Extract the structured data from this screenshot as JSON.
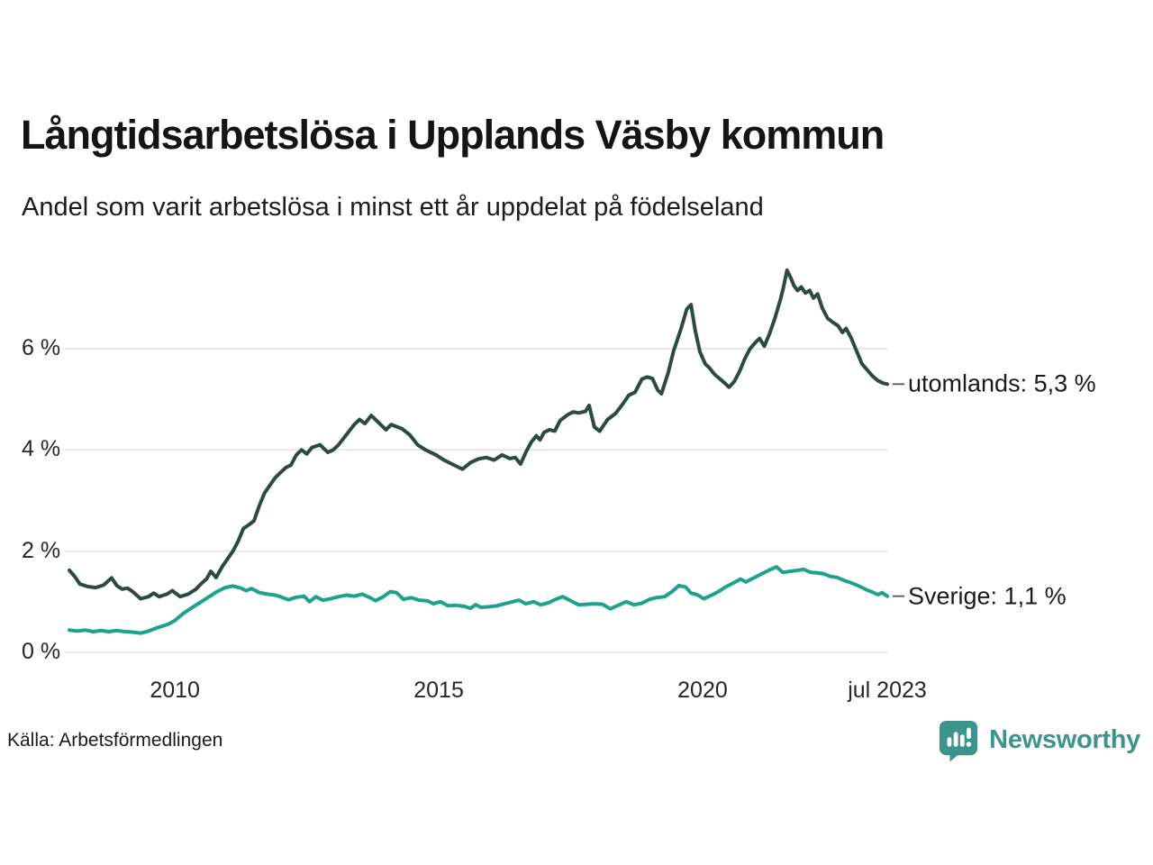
{
  "header": {
    "title": "Långtidsarbetslösa i Upplands Väsby kommun",
    "subtitle": "Andel som varit arbetslösa i minst ett år uppdelat på födelseland"
  },
  "footer": {
    "source": "Källa: Arbetsförmedlingen",
    "brand": "Newsworthy"
  },
  "colors": {
    "background": "#ffffff",
    "title_text": "#141414",
    "axis_text": "#262626",
    "gridline": "#e2e2e2",
    "connector": "#555555",
    "brand_teal": "#3e948c",
    "series_utomlands": "#2a4a42",
    "series_sverige": "#1ca28e"
  },
  "chart_data": {
    "type": "line",
    "title": "Långtidsarbetslösa i Upplands Väsby kommun",
    "subtitle": "Andel som varit arbetslösa i minst ett år uppdelat på födelseland",
    "source": "Källa: Arbetsförmedlingen",
    "grid": "horizontal-only",
    "legend_position": "labels-at-line-end-right",
    "x_axis": {
      "unit": "year (monthly observations)",
      "range": [
        2008.0,
        2023.5
      ],
      "ticks": [
        {
          "label": "2010",
          "year": 2010
        },
        {
          "label": "2015",
          "year": 2015
        },
        {
          "label": "2020",
          "year": 2020
        },
        {
          "label": "jul 2023",
          "year": 2023.5
        }
      ]
    },
    "y_axis": {
      "unit": "percent",
      "range": [
        0,
        7.8
      ],
      "gridlines": true,
      "ticks": [
        {
          "label": "0 %",
          "value": 0
        },
        {
          "label": "2 %",
          "value": 2
        },
        {
          "label": "4 %",
          "value": 4
        },
        {
          "label": "6 %",
          "value": 6
        }
      ]
    },
    "series": [
      {
        "name": "utomlands",
        "label": "utomlands: 5,3 %",
        "last_value": 5.3,
        "color": "#2a4a42",
        "points": [
          [
            2008.0,
            1.62
          ],
          [
            2008.1,
            1.5
          ],
          [
            2008.2,
            1.35
          ],
          [
            2008.35,
            1.3
          ],
          [
            2008.5,
            1.28
          ],
          [
            2008.65,
            1.33
          ],
          [
            2008.8,
            1.47
          ],
          [
            2008.9,
            1.32
          ],
          [
            2009.0,
            1.25
          ],
          [
            2009.1,
            1.27
          ],
          [
            2009.2,
            1.2
          ],
          [
            2009.35,
            1.06
          ],
          [
            2009.5,
            1.1
          ],
          [
            2009.6,
            1.17
          ],
          [
            2009.7,
            1.1
          ],
          [
            2009.85,
            1.15
          ],
          [
            2009.95,
            1.22
          ],
          [
            2010.1,
            1.1
          ],
          [
            2010.25,
            1.15
          ],
          [
            2010.4,
            1.25
          ],
          [
            2010.5,
            1.36
          ],
          [
            2010.6,
            1.45
          ],
          [
            2010.68,
            1.6
          ],
          [
            2010.78,
            1.48
          ],
          [
            2010.9,
            1.7
          ],
          [
            2011.0,
            1.85
          ],
          [
            2011.1,
            2.0
          ],
          [
            2011.2,
            2.2
          ],
          [
            2011.3,
            2.45
          ],
          [
            2011.4,
            2.52
          ],
          [
            2011.5,
            2.6
          ],
          [
            2011.6,
            2.9
          ],
          [
            2011.7,
            3.15
          ],
          [
            2011.8,
            3.3
          ],
          [
            2011.9,
            3.45
          ],
          [
            2012.0,
            3.55
          ],
          [
            2012.1,
            3.65
          ],
          [
            2012.2,
            3.7
          ],
          [
            2012.3,
            3.9
          ],
          [
            2012.4,
            4.0
          ],
          [
            2012.5,
            3.92
          ],
          [
            2012.6,
            4.05
          ],
          [
            2012.75,
            4.1
          ],
          [
            2012.9,
            3.95
          ],
          [
            2013.0,
            4.0
          ],
          [
            2013.1,
            4.1
          ],
          [
            2013.25,
            4.3
          ],
          [
            2013.4,
            4.5
          ],
          [
            2013.5,
            4.6
          ],
          [
            2013.6,
            4.52
          ],
          [
            2013.72,
            4.68
          ],
          [
            2013.85,
            4.55
          ],
          [
            2014.0,
            4.4
          ],
          [
            2014.1,
            4.5
          ],
          [
            2014.3,
            4.42
          ],
          [
            2014.45,
            4.3
          ],
          [
            2014.6,
            4.1
          ],
          [
            2014.75,
            4.0
          ],
          [
            2014.95,
            3.9
          ],
          [
            2015.1,
            3.8
          ],
          [
            2015.25,
            3.72
          ],
          [
            2015.45,
            3.62
          ],
          [
            2015.6,
            3.75
          ],
          [
            2015.75,
            3.82
          ],
          [
            2015.9,
            3.85
          ],
          [
            2016.05,
            3.8
          ],
          [
            2016.2,
            3.9
          ],
          [
            2016.35,
            3.83
          ],
          [
            2016.45,
            3.85
          ],
          [
            2016.55,
            3.72
          ],
          [
            2016.65,
            3.95
          ],
          [
            2016.75,
            4.15
          ],
          [
            2016.85,
            4.28
          ],
          [
            2016.92,
            4.2
          ],
          [
            2017.0,
            4.35
          ],
          [
            2017.1,
            4.4
          ],
          [
            2017.2,
            4.37
          ],
          [
            2017.3,
            4.58
          ],
          [
            2017.45,
            4.7
          ],
          [
            2017.55,
            4.75
          ],
          [
            2017.65,
            4.73
          ],
          [
            2017.78,
            4.76
          ],
          [
            2017.85,
            4.88
          ],
          [
            2017.95,
            4.45
          ],
          [
            2018.05,
            4.37
          ],
          [
            2018.2,
            4.6
          ],
          [
            2018.35,
            4.72
          ],
          [
            2018.47,
            4.88
          ],
          [
            2018.6,
            5.08
          ],
          [
            2018.72,
            5.14
          ],
          [
            2018.85,
            5.4
          ],
          [
            2018.95,
            5.44
          ],
          [
            2019.05,
            5.41
          ],
          [
            2019.15,
            5.18
          ],
          [
            2019.22,
            5.11
          ],
          [
            2019.35,
            5.53
          ],
          [
            2019.45,
            5.95
          ],
          [
            2019.58,
            6.36
          ],
          [
            2019.7,
            6.78
          ],
          [
            2019.78,
            6.87
          ],
          [
            2019.86,
            6.36
          ],
          [
            2019.95,
            5.94
          ],
          [
            2020.05,
            5.7
          ],
          [
            2020.13,
            5.62
          ],
          [
            2020.22,
            5.5
          ],
          [
            2020.32,
            5.41
          ],
          [
            2020.42,
            5.32
          ],
          [
            2020.5,
            5.24
          ],
          [
            2020.6,
            5.35
          ],
          [
            2020.7,
            5.55
          ],
          [
            2020.8,
            5.8
          ],
          [
            2020.9,
            6.0
          ],
          [
            2021.0,
            6.12
          ],
          [
            2021.08,
            6.2
          ],
          [
            2021.17,
            6.05
          ],
          [
            2021.27,
            6.3
          ],
          [
            2021.37,
            6.6
          ],
          [
            2021.47,
            6.95
          ],
          [
            2021.53,
            7.2
          ],
          [
            2021.6,
            7.55
          ],
          [
            2021.67,
            7.4
          ],
          [
            2021.73,
            7.25
          ],
          [
            2021.8,
            7.15
          ],
          [
            2021.87,
            7.22
          ],
          [
            2021.95,
            7.1
          ],
          [
            2022.03,
            7.15
          ],
          [
            2022.1,
            7.0
          ],
          [
            2022.18,
            7.08
          ],
          [
            2022.27,
            6.8
          ],
          [
            2022.37,
            6.6
          ],
          [
            2022.47,
            6.52
          ],
          [
            2022.57,
            6.45
          ],
          [
            2022.65,
            6.32
          ],
          [
            2022.72,
            6.4
          ],
          [
            2022.82,
            6.2
          ],
          [
            2022.92,
            5.95
          ],
          [
            2023.02,
            5.7
          ],
          [
            2023.12,
            5.58
          ],
          [
            2023.22,
            5.46
          ],
          [
            2023.32,
            5.37
          ],
          [
            2023.42,
            5.32
          ],
          [
            2023.5,
            5.3
          ]
        ]
      },
      {
        "name": "Sverige",
        "label": "Sverige: 1,1 %",
        "last_value": 1.1,
        "color": "#1ca28e",
        "points": [
          [
            2008.0,
            0.44
          ],
          [
            2008.15,
            0.42
          ],
          [
            2008.3,
            0.44
          ],
          [
            2008.45,
            0.41
          ],
          [
            2008.6,
            0.43
          ],
          [
            2008.75,
            0.41
          ],
          [
            2008.9,
            0.43
          ],
          [
            2009.05,
            0.41
          ],
          [
            2009.2,
            0.4
          ],
          [
            2009.35,
            0.38
          ],
          [
            2009.5,
            0.42
          ],
          [
            2009.65,
            0.48
          ],
          [
            2009.8,
            0.53
          ],
          [
            2009.9,
            0.57
          ],
          [
            2010.0,
            0.63
          ],
          [
            2010.1,
            0.72
          ],
          [
            2010.2,
            0.8
          ],
          [
            2010.35,
            0.9
          ],
          [
            2010.5,
            1.0
          ],
          [
            2010.65,
            1.1
          ],
          [
            2010.8,
            1.2
          ],
          [
            2010.95,
            1.28
          ],
          [
            2011.1,
            1.31
          ],
          [
            2011.25,
            1.27
          ],
          [
            2011.35,
            1.22
          ],
          [
            2011.45,
            1.26
          ],
          [
            2011.6,
            1.18
          ],
          [
            2011.75,
            1.15
          ],
          [
            2011.9,
            1.13
          ],
          [
            2012.0,
            1.1
          ],
          [
            2012.15,
            1.04
          ],
          [
            2012.3,
            1.09
          ],
          [
            2012.45,
            1.11
          ],
          [
            2012.55,
            1.0
          ],
          [
            2012.67,
            1.1
          ],
          [
            2012.8,
            1.03
          ],
          [
            2012.95,
            1.06
          ],
          [
            2013.1,
            1.1
          ],
          [
            2013.25,
            1.13
          ],
          [
            2013.4,
            1.11
          ],
          [
            2013.55,
            1.15
          ],
          [
            2013.7,
            1.08
          ],
          [
            2013.8,
            1.02
          ],
          [
            2013.95,
            1.1
          ],
          [
            2014.08,
            1.2
          ],
          [
            2014.2,
            1.18
          ],
          [
            2014.33,
            1.05
          ],
          [
            2014.48,
            1.08
          ],
          [
            2014.63,
            1.03
          ],
          [
            2014.78,
            1.02
          ],
          [
            2014.9,
            0.96
          ],
          [
            2015.03,
            1.0
          ],
          [
            2015.18,
            0.92
          ],
          [
            2015.33,
            0.93
          ],
          [
            2015.48,
            0.91
          ],
          [
            2015.6,
            0.87
          ],
          [
            2015.7,
            0.94
          ],
          [
            2015.8,
            0.89
          ],
          [
            2015.95,
            0.9
          ],
          [
            2016.1,
            0.92
          ],
          [
            2016.25,
            0.96
          ],
          [
            2016.4,
            1.0
          ],
          [
            2016.52,
            1.03
          ],
          [
            2016.65,
            0.96
          ],
          [
            2016.8,
            1.0
          ],
          [
            2016.93,
            0.94
          ],
          [
            2017.08,
            0.98
          ],
          [
            2017.22,
            1.05
          ],
          [
            2017.35,
            1.1
          ],
          [
            2017.5,
            1.02
          ],
          [
            2017.65,
            0.94
          ],
          [
            2017.8,
            0.95
          ],
          [
            2017.95,
            0.96
          ],
          [
            2018.1,
            0.95
          ],
          [
            2018.25,
            0.86
          ],
          [
            2018.4,
            0.93
          ],
          [
            2018.55,
            1.0
          ],
          [
            2018.7,
            0.94
          ],
          [
            2018.85,
            0.97
          ],
          [
            2019.0,
            1.05
          ],
          [
            2019.12,
            1.08
          ],
          [
            2019.28,
            1.1
          ],
          [
            2019.42,
            1.2
          ],
          [
            2019.55,
            1.32
          ],
          [
            2019.68,
            1.29
          ],
          [
            2019.78,
            1.17
          ],
          [
            2019.9,
            1.14
          ],
          [
            2020.02,
            1.06
          ],
          [
            2020.15,
            1.12
          ],
          [
            2020.3,
            1.2
          ],
          [
            2020.45,
            1.3
          ],
          [
            2020.6,
            1.38
          ],
          [
            2020.72,
            1.45
          ],
          [
            2020.82,
            1.39
          ],
          [
            2020.95,
            1.46
          ],
          [
            2021.1,
            1.54
          ],
          [
            2021.25,
            1.62
          ],
          [
            2021.4,
            1.69
          ],
          [
            2021.52,
            1.58
          ],
          [
            2021.65,
            1.6
          ],
          [
            2021.8,
            1.62
          ],
          [
            2021.92,
            1.64
          ],
          [
            2022.05,
            1.58
          ],
          [
            2022.18,
            1.57
          ],
          [
            2022.3,
            1.55
          ],
          [
            2022.42,
            1.5
          ],
          [
            2022.55,
            1.48
          ],
          [
            2022.68,
            1.42
          ],
          [
            2022.8,
            1.38
          ],
          [
            2022.92,
            1.33
          ],
          [
            2023.02,
            1.28
          ],
          [
            2023.12,
            1.23
          ],
          [
            2023.22,
            1.19
          ],
          [
            2023.32,
            1.14
          ],
          [
            2023.4,
            1.18
          ],
          [
            2023.5,
            1.11
          ]
        ]
      }
    ]
  }
}
